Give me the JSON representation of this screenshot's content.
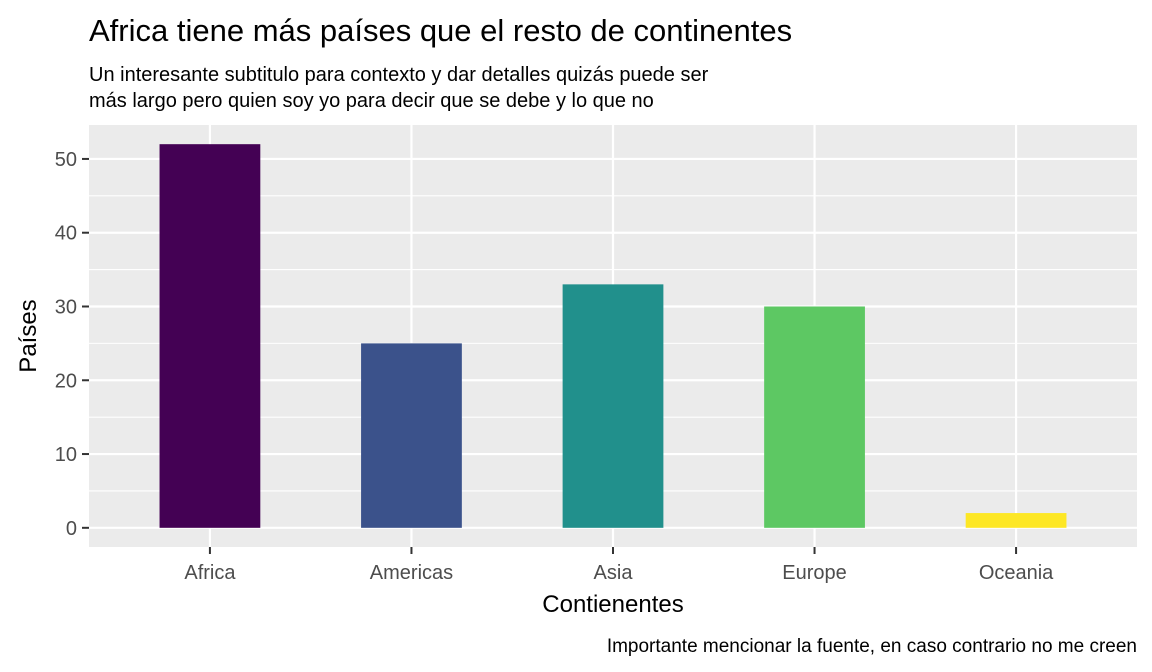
{
  "chart_data": {
    "type": "bar",
    "title": "Africa tiene más países que el resto de continentes",
    "subtitle_lines": [
      "Un interesante subtitulo para contexto y dar detalles quizás puede ser",
      "más largo pero quien soy yo para decir que se debe y lo que no"
    ],
    "xlabel": "Contienentes",
    "ylabel": "Países",
    "caption": "Importante mencionar la fuente, en caso contrario no me creen",
    "categories": [
      "Africa",
      "Americas",
      "Asia",
      "Europe",
      "Oceania"
    ],
    "values": [
      52,
      25,
      33,
      30,
      2
    ],
    "colors": [
      "#440154",
      "#3b528b",
      "#21908c",
      "#5dc863",
      "#fde725"
    ],
    "ylim": [
      -2.6,
      54.6
    ],
    "yticks": [
      0,
      10,
      20,
      30,
      40,
      50
    ],
    "ytick_labels": [
      "0",
      "10",
      "20",
      "30",
      "40",
      "50"
    ],
    "grid": true,
    "legend": "none",
    "panel_background": "#ebebeb",
    "grid_color": "#ffffff"
  }
}
